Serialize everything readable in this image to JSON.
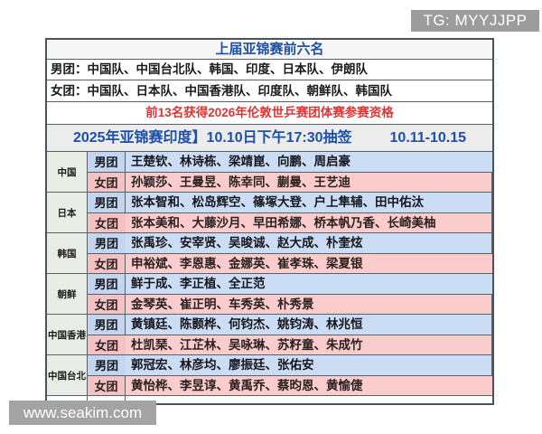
{
  "watermarks": {
    "tg": "TG: MYYJJPP",
    "site": "www.seakim.com"
  },
  "top_section": {
    "title": "上届亚锦赛前六名",
    "men_line": "男团：中国队、中国台北队、韩国、印度、日本队、伊朗队",
    "women_line": "女团：中国队、日本队、中国香港队、印度队、朝鲜队、韩国队",
    "notice": "前13名获得2026年伦敦世乒赛团体赛参赛资格",
    "header_left": "2025年亚锦赛印度】10.10日下午17:30抽签",
    "header_right": "10.11-10.15"
  },
  "labels": {
    "men": "男团",
    "women": "女团"
  },
  "teams": [
    {
      "country": "中国",
      "men": "王楚钦、林诗栋、梁靖崑、向鹏、周启豪",
      "women": "孙颖莎、王曼昱、陈幸同、蒯曼、王艺迪"
    },
    {
      "country": "日本",
      "men": "张本智和、松岛辉空、篠塚大登、户上隼辅、田中佑汰",
      "women": "张本美和、大藤沙月、早田希娜、桥本帆乃香、长崎美柚"
    },
    {
      "country": "韩国",
      "men": "张禹珍、安宰贤、吴晙诚、赵大成、朴奎炫",
      "women": "申裕斌、李恩惠、金娜英、崔孝珠、梁夏银"
    },
    {
      "country": "朝鲜",
      "men": "鲜于成、李正植、全正范",
      "women": "金琴英、崔正明、车秀英、朴秀景"
    },
    {
      "country": "中国香港",
      "men": "黄镇廷、陈颢桦、何钧杰、姚钧涛、林兆恒",
      "women": "杜凯琹、江芷林、吴咏琳、苏籽童、朱成竹"
    },
    {
      "country": "中国台北",
      "men": "郭冠宏、林彦均、廖振廷、张佑安",
      "women": "黄怡桦、李昱谆、黄禹乔、蔡昀恩、黄愉倢"
    }
  ],
  "colors": {
    "men_row": "#cbdcf5",
    "women_row": "#fbcccc",
    "country_cell": "#e8ede6",
    "header_bg": "#ececec",
    "title_text": "#2050a0",
    "notice_text": "#e23333",
    "watermark_bg": "#a3a3a3"
  }
}
